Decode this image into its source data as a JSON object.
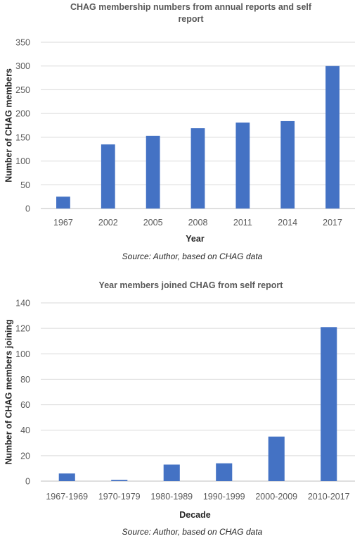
{
  "colors": {
    "bar": "#4472c4",
    "grid": "#d9d9d9",
    "text": "#595959"
  },
  "chart_data": [
    {
      "type": "bar",
      "title_lines": [
        "CHAG membership numbers from annual reports and self",
        "report"
      ],
      "xlabel": "Year",
      "ylabel": "Number of CHAG members",
      "source": "Source: Author, based on CHAG data",
      "categories": [
        "1967",
        "2002",
        "2005",
        "2008",
        "2011",
        "2014",
        "2017"
      ],
      "values": [
        25,
        135,
        153,
        169,
        181,
        184,
        300
      ],
      "ylim": [
        0,
        350
      ],
      "yticks": [
        0,
        50,
        100,
        150,
        200,
        250,
        300,
        350
      ],
      "grid": true,
      "legend": "none"
    },
    {
      "type": "bar",
      "title_lines": [
        "Year members joined CHAG from self report"
      ],
      "xlabel": "Decade",
      "ylabel": "Number of CHAG members joining",
      "source": "Source: Author, based on CHAG data",
      "categories": [
        "1967-1969",
        "1970-1979",
        "1980-1989",
        "1990-1999",
        "2000-2009",
        "2010-2017"
      ],
      "values": [
        6,
        1,
        13,
        14,
        35,
        121
      ],
      "ylim": [
        0,
        140
      ],
      "yticks": [
        0,
        20,
        40,
        60,
        80,
        100,
        120,
        140
      ],
      "grid": true,
      "legend": "none"
    }
  ]
}
